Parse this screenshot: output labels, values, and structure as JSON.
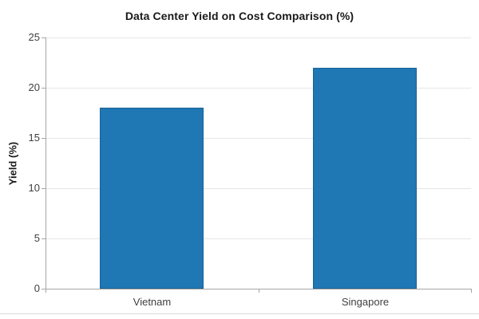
{
  "chart_data": {
    "type": "bar",
    "title": "Data Center Yield on Cost Comparison (%)",
    "categories": [
      "Vietnam",
      "Singapore"
    ],
    "values": [
      18,
      22
    ],
    "xlabel": "",
    "ylabel": "Yield (%)",
    "ylim": [
      0,
      25
    ],
    "yticks": [
      0,
      5,
      10,
      15,
      20,
      25
    ],
    "grid": true,
    "legend": false,
    "colors": {
      "bar_fill": "#1F77B4",
      "bar_border": "#1A6397",
      "gridline": "#E6E6E6",
      "axis": "#A6A6A6",
      "tick_text": "#404040",
      "title_text": "#1A1A1A",
      "background": "#FFFFFF",
      "bottom_border": "#DBDBDB"
    }
  }
}
